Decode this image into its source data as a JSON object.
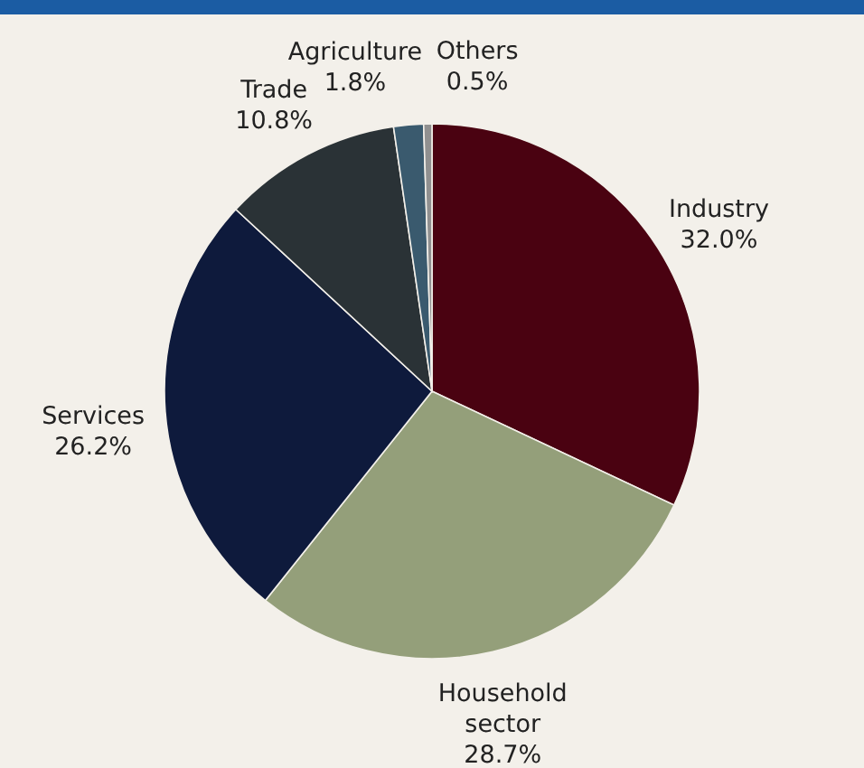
{
  "chart_data": {
    "type": "pie",
    "categories": [
      "Industry",
      "Household sector",
      "Services",
      "Trade",
      "Agriculture",
      "Others"
    ],
    "values": [
      32.0,
      28.7,
      26.2,
      10.8,
      1.8,
      0.5
    ],
    "colors": [
      "#4a0211",
      "#949f7a",
      "#0e1a3c",
      "#2a3236",
      "#3a5a6e",
      "#909090"
    ],
    "value_labels": [
      "32.0%",
      "28.7%",
      "26.2%",
      "10.8%",
      "1.8%",
      "0.5%"
    ]
  }
}
